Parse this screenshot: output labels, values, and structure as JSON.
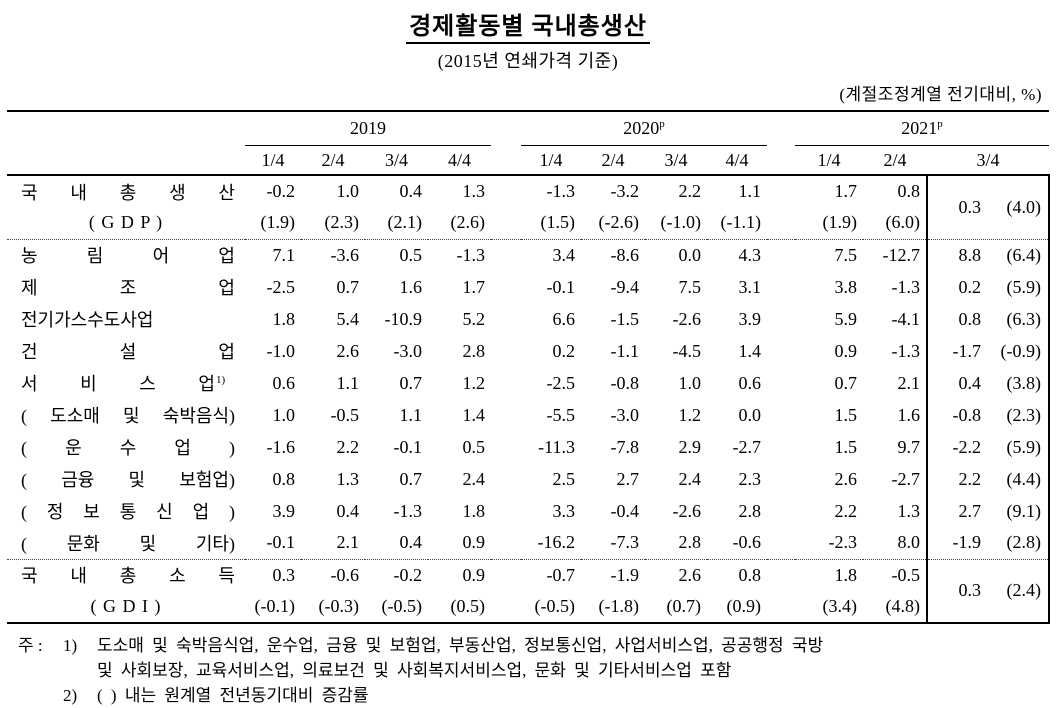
{
  "title": "경제활동별 국내총생산",
  "subtitle": "(2015년 연쇄가격 기준)",
  "unit_note": "(계절조정계열 전기대비, %)",
  "table": {
    "year_groups": [
      {
        "label": "2019",
        "sup": "",
        "quarters": [
          "1/4",
          "2/4",
          "3/4",
          "4/4"
        ]
      },
      {
        "label": "2020",
        "sup": "p",
        "quarters": [
          "1/4",
          "2/4",
          "3/4",
          "4/4"
        ]
      },
      {
        "label": "2021",
        "sup": "p",
        "quarters": [
          "1/4",
          "2/4",
          "3/4"
        ]
      }
    ],
    "rows": [
      {
        "label": "국 내 총 생 산",
        "label2": "( G D P )",
        "double": true,
        "section_start": false,
        "line1": [
          "-0.2",
          "1.0",
          "0.4",
          "1.3",
          "-1.3",
          "-3.2",
          "2.2",
          "1.1",
          "1.7",
          "0.8"
        ],
        "line2": [
          "(1.9)",
          "(2.3)",
          "(2.1)",
          "(2.6)",
          "(1.5)",
          "(-2.6)",
          "(-1.0)",
          "(-1.1)",
          "(1.9)",
          "(6.0)"
        ],
        "box": [
          "0.3",
          "(4.0)"
        ]
      },
      {
        "label": "농 림 어 업",
        "section_start": true,
        "line1": [
          "7.1",
          "-3.6",
          "0.5",
          "-1.3",
          "3.4",
          "-8.6",
          "0.0",
          "4.3",
          "7.5",
          "-12.7"
        ],
        "box": [
          "8.8",
          "(6.4)"
        ]
      },
      {
        "label": "제 조 업",
        "line1": [
          "-2.5",
          "0.7",
          "1.6",
          "1.7",
          "-0.1",
          "-9.4",
          "7.5",
          "3.1",
          "3.8",
          "-1.3"
        ],
        "box": [
          "0.2",
          "(5.9)"
        ]
      },
      {
        "label": "전기가스수도사업",
        "line1": [
          "1.8",
          "5.4",
          "-10.9",
          "5.2",
          "6.6",
          "-1.5",
          "-2.6",
          "3.9",
          "5.9",
          "-4.1"
        ],
        "box": [
          "0.8",
          "(6.3)"
        ]
      },
      {
        "label": "건 설 업",
        "line1": [
          "-1.0",
          "2.6",
          "-3.0",
          "2.8",
          "0.2",
          "-1.1",
          "-4.5",
          "1.4",
          "0.9",
          "-1.3"
        ],
        "box": [
          "-1.7",
          "(-0.9)"
        ]
      },
      {
        "label": "서 비 스 업",
        "label_sup": "1)",
        "line1": [
          "0.6",
          "1.1",
          "0.7",
          "1.2",
          "-2.5",
          "-0.8",
          "1.0",
          "0.6",
          "0.7",
          "2.1"
        ],
        "box": [
          "0.4",
          "(3.8)"
        ]
      },
      {
        "label": "( 도소매 및 숙박음식)",
        "line1": [
          "1.0",
          "-0.5",
          "1.1",
          "1.4",
          "-5.5",
          "-3.0",
          "1.2",
          "0.0",
          "1.5",
          "1.6"
        ],
        "box": [
          "-0.8",
          "(2.3)"
        ]
      },
      {
        "label": "( 운 수 업 )",
        "line1": [
          "-1.6",
          "2.2",
          "-0.1",
          "0.5",
          "-11.3",
          "-7.8",
          "2.9",
          "-2.7",
          "1.5",
          "9.7"
        ],
        "box": [
          "-2.2",
          "(5.9)"
        ]
      },
      {
        "label": "( 금융 및 보험업)",
        "line1": [
          "0.8",
          "1.3",
          "0.7",
          "2.4",
          "2.5",
          "2.7",
          "2.4",
          "2.3",
          "2.6",
          "-2.7"
        ],
        "box": [
          "2.2",
          "(4.4)"
        ]
      },
      {
        "label": "( 정 보 통 신 업 )",
        "line1": [
          "3.9",
          "0.4",
          "-1.3",
          "1.8",
          "3.3",
          "-0.4",
          "-2.6",
          "2.8",
          "2.2",
          "1.3"
        ],
        "box": [
          "2.7",
          "(9.1)"
        ]
      },
      {
        "label": "( 문화 및 기타)",
        "line1": [
          "-0.1",
          "2.1",
          "0.4",
          "0.9",
          "-16.2",
          "-7.3",
          "2.8",
          "-0.6",
          "-2.3",
          "8.0"
        ],
        "box": [
          "-1.9",
          "(2.8)"
        ]
      },
      {
        "label": "국 내 총 소 득",
        "label2": "( G D I )",
        "double": true,
        "section_start": true,
        "line1": [
          "0.3",
          "-0.6",
          "-0.2",
          "0.9",
          "-0.7",
          "-1.9",
          "2.6",
          "0.8",
          "1.8",
          "-0.5"
        ],
        "line2": [
          "(-0.1)",
          "(-0.3)",
          "(-0.5)",
          "(0.5)",
          "(-0.5)",
          "(-1.8)",
          "(0.7)",
          "(0.9)",
          "(3.4)",
          "(4.8)"
        ],
        "box": [
          "0.3",
          "(2.4)"
        ]
      }
    ]
  },
  "footnotes": {
    "marker": "주 :",
    "note1_label": "1)",
    "note1_line1": "도소매 및 숙박음식업, 운수업, 금융 및 보험업, 부동산업, 정보통신업, 사업서비스업, 공공행정 국방",
    "note1_line2": "및 사회보장, 교육서비스업, 의료보건 및 사회복지서비스업, 문화 및 기타서비스업 포함",
    "note2_label": "2)",
    "note2_text": "( ) 내는 원계열 전년동기대비 증감률"
  }
}
